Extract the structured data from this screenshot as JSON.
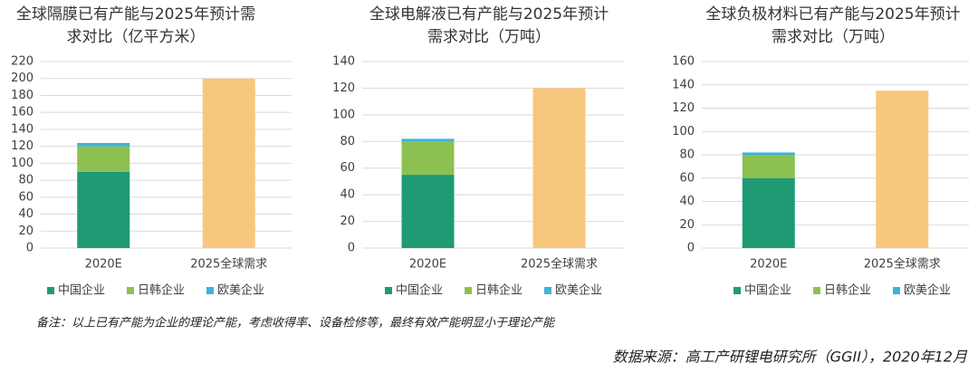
{
  "chart_data": [
    {
      "type": "bar",
      "stacked": true,
      "title": [
        "全球隔膜已有产能与2025年预计需",
        "求对比（亿平方米）"
      ],
      "categories": [
        "2020E",
        "2025全球需求"
      ],
      "series": [
        {
          "name": "中国企业",
          "color": "#1f9a74",
          "values": [
            90,
            null
          ]
        },
        {
          "name": "日韩企业",
          "color": "#8cc152",
          "values": [
            30,
            null
          ]
        },
        {
          "name": "欧美企业",
          "color": "#3fb3d9",
          "values": [
            4,
            null
          ]
        },
        {
          "color": "#f7c77e",
          "values": [
            null,
            200
          ]
        }
      ],
      "ylim": [
        0,
        220
      ],
      "yticks": [
        0,
        20,
        40,
        60,
        80,
        100,
        120,
        140,
        160,
        180,
        200,
        220
      ],
      "grid": true
    },
    {
      "type": "bar",
      "stacked": true,
      "title": [
        "全球电解液已有产能与2025年预计",
        "需求对比（万吨）"
      ],
      "categories": [
        "2020E",
        "2025全球需求"
      ],
      "series": [
        {
          "name": "中国企业",
          "color": "#1f9a74",
          "values": [
            55,
            null
          ]
        },
        {
          "name": "日韩企业",
          "color": "#8cc152",
          "values": [
            25,
            null
          ]
        },
        {
          "name": "欧美企业",
          "color": "#3fb3d9",
          "values": [
            2,
            null
          ]
        },
        {
          "color": "#f7c77e",
          "values": [
            null,
            120
          ]
        }
      ],
      "ylim": [
        0,
        140
      ],
      "yticks": [
        0,
        20,
        40,
        60,
        80,
        100,
        120,
        140
      ],
      "grid": true
    },
    {
      "type": "bar",
      "stacked": true,
      "title": [
        "全球负极材料已有产能与2025年预计",
        "需求对比（万吨）"
      ],
      "categories": [
        "2020E",
        "2025全球需求"
      ],
      "series": [
        {
          "name": "中国企业",
          "color": "#1f9a74",
          "values": [
            60,
            null
          ]
        },
        {
          "name": "日韩企业",
          "color": "#8cc152",
          "values": [
            20,
            null
          ]
        },
        {
          "name": "欧美企业",
          "color": "#3fb3d9",
          "values": [
            2,
            null
          ]
        },
        {
          "color": "#f7c77e",
          "values": [
            null,
            135
          ]
        }
      ],
      "ylim": [
        0,
        160
      ],
      "yticks": [
        0,
        20,
        40,
        60,
        80,
        100,
        120,
        140,
        160
      ],
      "grid": true
    }
  ],
  "note": "备注：以上已有产能为企业的理论产能，考虑收得率、设备检修等，最终有效产能明显小于理论产能",
  "source": "数据来源：高工产研锂电研究所（GGII），2020年12月"
}
